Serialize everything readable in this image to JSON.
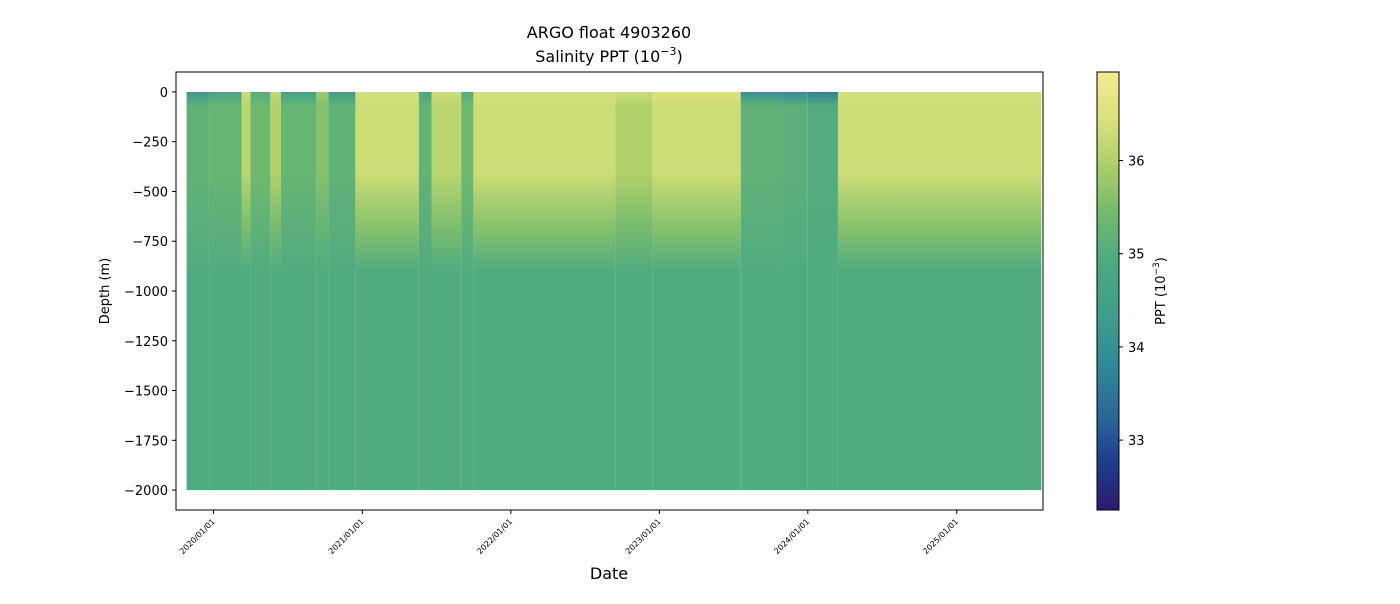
{
  "chart_data": {
    "type": "heatmap",
    "title": "ARGO float 4903260",
    "subtitle_main": "Salinity PPT (10",
    "subtitle_exp": "−3",
    "subtitle_end": ")",
    "xlabel": "Date",
    "ylabel": "Depth (m)",
    "x_range": [
      "2019/10/01",
      "2025/08/01"
    ],
    "y_range": [
      -2100,
      100
    ],
    "y_ticks": [
      0,
      -250,
      -500,
      -750,
      -1000,
      -1250,
      -1500,
      -1750,
      -2000
    ],
    "y_tick_labels": [
      "0",
      "−250",
      "−500",
      "−750",
      "−1000",
      "−1250",
      "−1500",
      "−1750",
      "−2000"
    ],
    "x_ticks": [
      "2020/01/01",
      "2021/01/01",
      "2022/01/01",
      "2023/01/01",
      "2024/01/01",
      "2025/01/01"
    ],
    "data_start": "2019/10/27",
    "data_end": "2025/07/28",
    "colorbar": {
      "label_main": "PPT (10",
      "label_exp": "−3",
      "label_end": ")",
      "range": [
        32.25,
        36.95
      ],
      "ticks": [
        33,
        34,
        35,
        36
      ],
      "tick_labels": [
        "33",
        "34",
        "35",
        "36"
      ],
      "colormap": [
        "#2b1b6b",
        "#1f3d8f",
        "#2b6a99",
        "#2f8a98",
        "#3f9f8a",
        "#4aa883",
        "#6db86f",
        "#a9cd68",
        "#d9e27a",
        "#f5ea8f"
      ]
    },
    "deep_value": 34.95,
    "surface_blocks": [
      {
        "start": "2019/10/27",
        "end": "2019/12/20",
        "surface": 34.2,
        "upper": 35.2
      },
      {
        "start": "2019/12/20",
        "end": "2020/03/10",
        "surface": 34.6,
        "upper": 35.3
      },
      {
        "start": "2020/03/10",
        "end": "2020/04/01",
        "surface": 36.3,
        "upper": 36.1
      },
      {
        "start": "2020/04/01",
        "end": "2020/05/20",
        "surface": 35.0,
        "upper": 35.4
      },
      {
        "start": "2020/05/20",
        "end": "2020/06/15",
        "surface": 36.2,
        "upper": 36.0
      },
      {
        "start": "2020/06/15",
        "end": "2020/09/10",
        "surface": 34.5,
        "upper": 35.3
      },
      {
        "start": "2020/09/10",
        "end": "2020/10/10",
        "surface": 35.8,
        "upper": 35.6
      },
      {
        "start": "2020/10/10",
        "end": "2020/12/15",
        "surface": 34.3,
        "upper": 35.2
      },
      {
        "start": "2020/12/15",
        "end": "2021/05/20",
        "surface": 36.4,
        "upper": 36.3
      },
      {
        "start": "2021/05/20",
        "end": "2021/06/20",
        "surface": 34.8,
        "upper": 35.2
      },
      {
        "start": "2021/06/20",
        "end": "2021/09/01",
        "surface": 36.3,
        "upper": 36.1
      },
      {
        "start": "2021/09/01",
        "end": "2021/10/01",
        "surface": 35.0,
        "upper": 35.4
      },
      {
        "start": "2021/10/01",
        "end": "2022/09/15",
        "surface": 36.4,
        "upper": 36.3
      },
      {
        "start": "2022/09/15",
        "end": "2022/12/15",
        "surface": 36.3,
        "upper": 36.0
      },
      {
        "start": "2022/12/15",
        "end": "2023/07/20",
        "surface": 36.5,
        "upper": 36.3
      },
      {
        "start": "2023/07/20",
        "end": "2023/11/01",
        "surface": 34.0,
        "upper": 35.2
      },
      {
        "start": "2023/11/01",
        "end": "2024/01/01",
        "surface": 33.9,
        "upper": 35.1
      },
      {
        "start": "2024/01/01",
        "end": "2024/03/15",
        "surface": 33.7,
        "upper": 35.0
      },
      {
        "start": "2024/03/15",
        "end": "2025/07/28",
        "surface": 36.4,
        "upper": 36.3
      }
    ]
  }
}
